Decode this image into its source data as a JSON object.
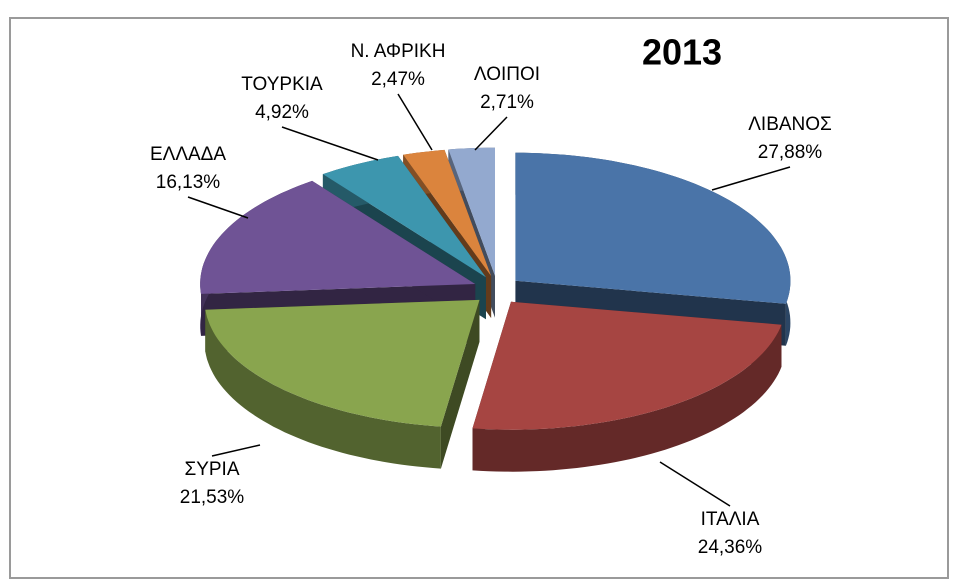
{
  "chart_data": {
    "type": "pie",
    "title": "2013",
    "categories": [
      "ΛΙΒΑΝΟΣ",
      "ΙΤΑΛΙΑ",
      "ΣΥΡΙΑ",
      "ΕΛΛΑΔΑ",
      "ΤΟΥΡΚΙΑ",
      "Ν. ΑΦΡΙΚΗ",
      "ΛΟΙΠΟΙ"
    ],
    "values": [
      27.88,
      24.36,
      21.53,
      16.13,
      4.92,
      2.47,
      2.71
    ],
    "value_labels": [
      "27,88%",
      "24,36%",
      "21,53%",
      "16,13%",
      "4,92%",
      "2,47%",
      "2,71%"
    ],
    "colors": [
      "#4a74a8",
      "#a64542",
      "#89a54e",
      "#6f5395",
      "#3d96ae",
      "#db843d",
      "#93a9cf"
    ]
  }
}
